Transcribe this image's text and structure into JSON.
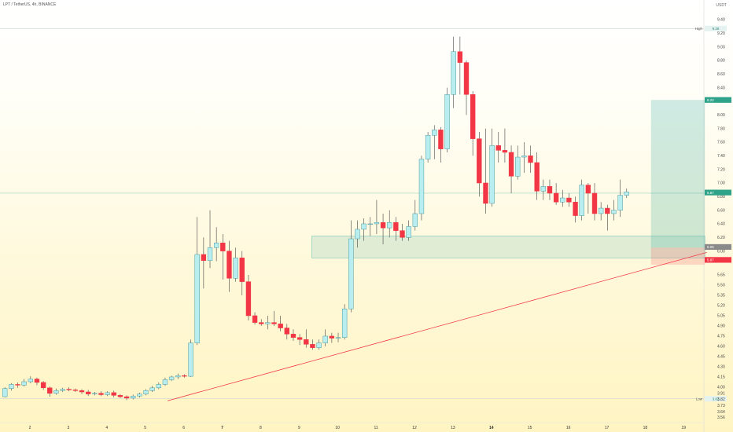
{
  "header": {
    "symbol_line": "LPT / TetherUS, 4h, BINANCE",
    "quote_currency": "USDT"
  },
  "chart_data": {
    "type": "candlestick",
    "ylim": [
      3.48,
      9.55
    ],
    "y_ticks": [
      "9.40",
      "9.20",
      "9.00",
      "8.80",
      "8.60",
      "8.40",
      "8.20",
      "8.00",
      "7.80",
      "7.60",
      "7.40",
      "7.20",
      "7.00",
      "6.80",
      "6.60",
      "6.40",
      "6.20",
      "6.00",
      "5.85",
      "5.65",
      "5.50",
      "5.35",
      "5.20",
      "5.05",
      "4.90",
      "4.75",
      "4.60",
      "4.45",
      "4.30",
      "4.15",
      "4.00",
      "3.91",
      "3.82",
      "3.73",
      "3.64",
      "3.56"
    ],
    "x_ticks": [
      "2",
      "3",
      "4",
      "5",
      "6",
      "7",
      "8",
      "9",
      "10",
      "11",
      "12",
      "13",
      "14",
      "15",
      "16",
      "17",
      "18",
      "19"
    ],
    "x_tick_days": [
      2,
      3,
      4,
      5,
      6,
      7,
      8,
      9,
      10,
      11,
      12,
      13,
      14,
      15,
      16,
      17,
      18,
      19
    ],
    "x_bold": [
      "7",
      "14"
    ],
    "candles": [
      [
        3.86,
        3.98,
        3.85,
        4.0
      ],
      [
        3.98,
        4.04,
        3.95,
        4.06
      ],
      [
        4.04,
        4.03,
        3.99,
        4.07
      ],
      [
        4.03,
        4.08,
        4.01,
        4.12
      ],
      [
        4.08,
        4.12,
        4.06,
        4.16
      ],
      [
        4.12,
        4.07,
        4.03,
        4.14
      ],
      [
        4.07,
        3.99,
        3.96,
        4.09
      ],
      [
        3.99,
        3.91,
        3.86,
        4.01
      ],
      [
        3.91,
        3.95,
        3.89,
        3.98
      ],
      [
        3.95,
        3.97,
        3.93,
        3.99
      ],
      [
        3.97,
        3.96,
        3.94,
        4.0
      ],
      [
        3.96,
        3.95,
        3.93,
        3.98
      ],
      [
        3.95,
        3.93,
        3.9,
        3.97
      ],
      [
        3.93,
        3.9,
        3.87,
        3.96
      ],
      [
        3.9,
        3.91,
        3.88,
        3.93
      ],
      [
        3.91,
        3.89,
        3.87,
        3.94
      ],
      [
        3.89,
        3.92,
        3.87,
        3.94
      ],
      [
        3.92,
        3.88,
        3.85,
        3.95
      ],
      [
        3.88,
        3.86,
        3.84,
        3.9
      ],
      [
        3.86,
        3.84,
        3.81,
        3.88
      ],
      [
        3.84,
        3.87,
        3.82,
        3.89
      ],
      [
        3.87,
        3.9,
        3.85,
        3.92
      ],
      [
        3.9,
        3.95,
        3.88,
        3.97
      ],
      [
        3.95,
        3.99,
        3.93,
        4.02
      ],
      [
        3.99,
        4.04,
        3.97,
        4.07
      ],
      [
        4.04,
        4.11,
        4.02,
        4.14
      ],
      [
        4.11,
        4.15,
        4.09,
        4.17
      ],
      [
        4.15,
        4.17,
        4.12,
        4.2
      ],
      [
        4.17,
        4.16,
        4.14,
        4.19
      ],
      [
        4.16,
        4.65,
        4.15,
        4.7
      ],
      [
        4.65,
        5.95,
        4.62,
        6.5
      ],
      [
        5.95,
        5.86,
        5.45,
        6.2
      ],
      [
        5.86,
        6.05,
        5.75,
        6.6
      ],
      [
        6.05,
        6.12,
        5.85,
        6.35
      ],
      [
        6.12,
        6.0,
        5.58,
        6.25
      ],
      [
        6.0,
        5.6,
        5.4,
        6.15
      ],
      [
        5.6,
        5.9,
        5.55,
        6.05
      ],
      [
        5.9,
        5.55,
        5.35,
        6.0
      ],
      [
        5.55,
        5.05,
        4.98,
        5.65
      ],
      [
        5.05,
        4.95,
        4.92,
        5.1
      ],
      [
        4.95,
        4.93,
        4.9,
        5.0
      ],
      [
        4.93,
        4.95,
        4.85,
        5.05
      ],
      [
        4.95,
        4.93,
        4.9,
        5.12
      ],
      [
        4.93,
        4.87,
        4.82,
        5.05
      ],
      [
        4.87,
        4.78,
        4.7,
        4.93
      ],
      [
        4.78,
        4.73,
        4.68,
        4.85
      ],
      [
        4.73,
        4.7,
        4.62,
        4.78
      ],
      [
        4.7,
        4.63,
        4.58,
        4.85
      ],
      [
        4.63,
        4.58,
        4.55,
        4.7
      ],
      [
        4.58,
        4.65,
        4.55,
        4.7
      ],
      [
        4.65,
        4.75,
        4.6,
        4.85
      ],
      [
        4.75,
        4.72,
        4.65,
        4.8
      ],
      [
        4.72,
        4.73,
        4.66,
        4.8
      ],
      [
        4.73,
        5.15,
        4.7,
        5.22
      ],
      [
        5.15,
        6.18,
        5.1,
        6.45
      ],
      [
        6.18,
        6.32,
        6.05,
        6.45
      ],
      [
        6.32,
        6.4,
        6.15,
        6.48
      ],
      [
        6.4,
        6.4,
        6.22,
        6.5
      ],
      [
        6.4,
        6.42,
        6.25,
        6.75
      ],
      [
        6.42,
        6.34,
        6.1,
        6.55
      ],
      [
        6.34,
        6.42,
        6.2,
        6.6
      ],
      [
        6.42,
        6.3,
        6.15,
        6.5
      ],
      [
        6.3,
        6.2,
        6.15,
        6.4
      ],
      [
        6.2,
        6.36,
        6.15,
        6.45
      ],
      [
        6.36,
        6.55,
        6.3,
        6.75
      ],
      [
        6.55,
        7.35,
        6.45,
        7.4
      ],
      [
        7.35,
        7.7,
        7.3,
        7.75
      ],
      [
        7.7,
        7.78,
        7.35,
        7.85
      ],
      [
        7.78,
        7.5,
        7.3,
        7.82
      ],
      [
        7.5,
        8.3,
        7.45,
        8.4
      ],
      [
        8.3,
        8.93,
        8.1,
        9.15
      ],
      [
        8.93,
        8.77,
        8.3,
        9.15
      ],
      [
        8.77,
        8.3,
        8.0,
        8.8
      ],
      [
        8.3,
        7.65,
        7.4,
        8.35
      ],
      [
        7.65,
        7.0,
        6.8,
        7.75
      ],
      [
        7.0,
        6.7,
        6.55,
        7.8
      ],
      [
        6.7,
        7.55,
        6.65,
        7.8
      ],
      [
        7.55,
        7.48,
        7.3,
        7.75
      ],
      [
        7.48,
        7.45,
        7.3,
        7.8
      ],
      [
        7.45,
        7.1,
        6.85,
        7.55
      ],
      [
        7.1,
        7.38,
        7.05,
        7.55
      ],
      [
        7.38,
        7.4,
        7.15,
        7.6
      ],
      [
        7.4,
        7.3,
        7.15,
        7.55
      ],
      [
        7.3,
        6.88,
        6.75,
        7.45
      ],
      [
        6.88,
        6.95,
        6.75,
        7.05
      ],
      [
        6.95,
        6.85,
        6.75,
        7.05
      ],
      [
        6.85,
        6.72,
        6.68,
        7.0
      ],
      [
        6.72,
        6.78,
        6.65,
        6.9
      ],
      [
        6.78,
        6.72,
        6.65,
        6.85
      ],
      [
        6.72,
        6.52,
        6.42,
        6.8
      ],
      [
        6.52,
        6.97,
        6.45,
        7.05
      ],
      [
        6.97,
        6.85,
        6.55,
        7.0
      ],
      [
        6.85,
        6.55,
        6.45,
        7.0
      ],
      [
        6.55,
        6.63,
        6.45,
        6.72
      ],
      [
        6.63,
        6.55,
        6.3,
        6.68
      ],
      [
        6.55,
        6.6,
        6.45,
        6.75
      ],
      [
        6.6,
        6.82,
        6.5,
        7.05
      ],
      [
        6.82,
        6.87,
        6.78,
        6.92
      ]
    ],
    "trendline": {
      "from": [
        5.58,
        3.8
      ],
      "to": [
        19.6,
        5.98
      ]
    },
    "hlines": [
      {
        "label": "High",
        "value": "9.26",
        "y": 9.27
      },
      {
        "label": "",
        "value": "",
        "y": 6.85
      },
      {
        "label": "Low",
        "value": "3.83",
        "y": 3.83
      }
    ],
    "zones": [
      {
        "name": "demand",
        "x0": 9.33,
        "x1": 19.55,
        "y0": 5.9,
        "y1": 6.22
      },
      {
        "name": "target",
        "x0": 18.15,
        "x1": 19.55,
        "y0": 6.05,
        "y1": 8.22
      },
      {
        "name": "stop",
        "x0": 18.15,
        "x1": 19.55,
        "y0": 5.8,
        "y1": 6.05
      }
    ],
    "price_labels": [
      {
        "value": "8.22",
        "y": 8.22,
        "color": "#2fa38a"
      },
      {
        "value": "6.87",
        "y": 6.86,
        "color": "#2fa38a"
      },
      {
        "value": "6.05",
        "y": 6.06,
        "color": "#8a8a8a"
      },
      {
        "value": "5.87",
        "y": 5.87,
        "color": "#f23645"
      }
    ],
    "colors": {
      "up": "#b8eef0",
      "up_border": "#4a9aa0",
      "down": "#f23645",
      "wick": "#444444",
      "trend": "#f23645"
    }
  }
}
